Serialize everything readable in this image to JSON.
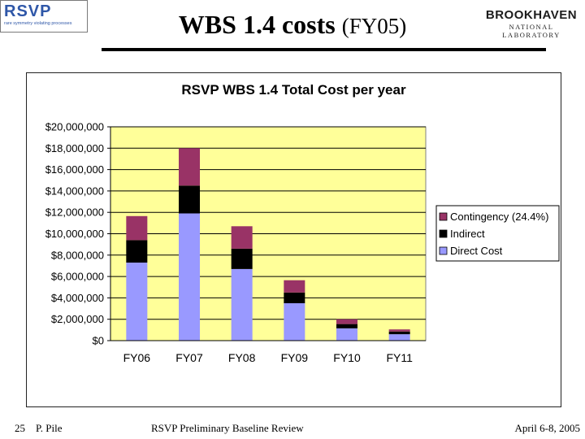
{
  "header": {
    "logo_left": {
      "word": "RSVP",
      "tagline": "rare symmetry violating processes"
    },
    "title_main": "WBS 1.4 costs",
    "title_sub": "(FY05)",
    "logo_right": {
      "line1": "BROOKHAVEN",
      "line2": "NATIONAL LABORATORY"
    }
  },
  "chart_data": {
    "type": "bar",
    "stacked": true,
    "title": "RSVP WBS 1.4 Total Cost per year",
    "categories": [
      "FY06",
      "FY07",
      "FY08",
      "FY09",
      "FY10",
      "FY11"
    ],
    "series": [
      {
        "name": "Direct Cost",
        "color": "#9999ff",
        "values": [
          7300000,
          11900000,
          6700000,
          3500000,
          1150000,
          600000
        ]
      },
      {
        "name": "Indirect",
        "color": "#000000",
        "values": [
          2100000,
          2600000,
          1900000,
          1000000,
          400000,
          250000
        ]
      },
      {
        "name": "Contingency (24.4%)",
        "color": "#993366",
        "values": [
          2250000,
          3500000,
          2100000,
          1150000,
          450000,
          200000
        ]
      }
    ],
    "legend_order": [
      "Contingency (24.4%)",
      "Indirect",
      "Direct Cost"
    ],
    "ylim": [
      0,
      20000000
    ],
    "y_ticks": [
      0,
      2000000,
      4000000,
      6000000,
      8000000,
      10000000,
      12000000,
      14000000,
      16000000,
      18000000,
      20000000
    ],
    "y_tick_labels": [
      "$0",
      "$2,000,000",
      "$4,000,000",
      "$6,000,000",
      "$8,000,000",
      "$10,000,000",
      "$12,000,000",
      "$14,000,000",
      "$16,000,000",
      "$18,000,000",
      "$20,000,000"
    ],
    "grid": true,
    "legend_position": "right",
    "plot_background": "#ffff99"
  },
  "footer": {
    "page_number": "25",
    "author": "P. Pile",
    "event": "RSVP Preliminary Baseline Review",
    "date": "April 6-8, 2005"
  }
}
